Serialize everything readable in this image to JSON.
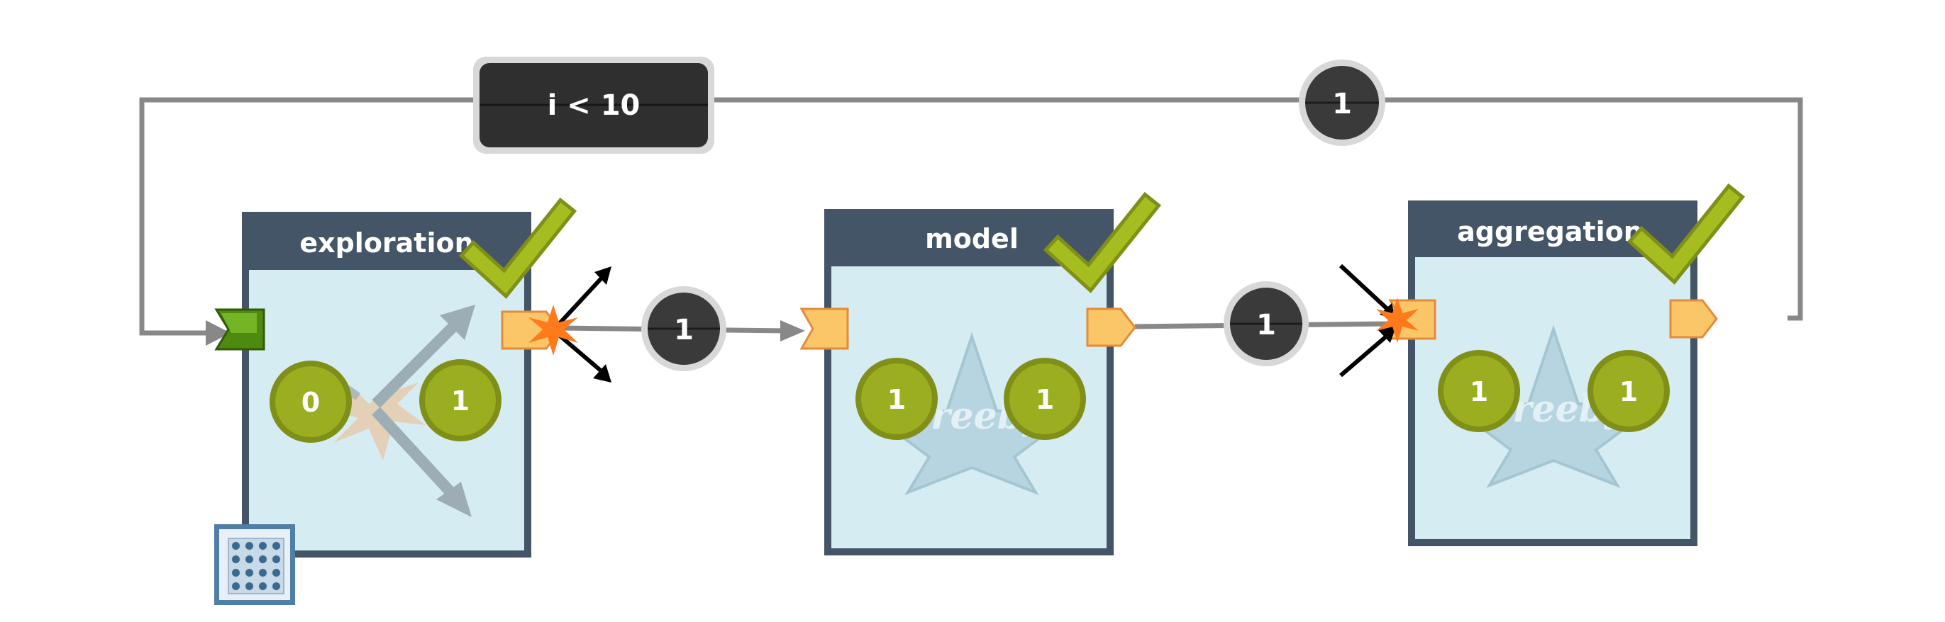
{
  "loop": {
    "condition": "i < 10",
    "counter": "1"
  },
  "nodes": [
    {
      "id": "exploration",
      "title": "exploration",
      "counters": [
        "0",
        "1"
      ],
      "status": "done"
    },
    {
      "id": "model",
      "title": "model",
      "counters": [
        "1",
        "1"
      ],
      "status": "done"
    },
    {
      "id": "aggregation",
      "title": "aggregation",
      "counters": [
        "1",
        "1"
      ],
      "status": "done"
    }
  ],
  "edges": [
    {
      "from": "exploration",
      "to": "model",
      "count": "1"
    },
    {
      "from": "model",
      "to": "aggregation",
      "count": "1"
    }
  ],
  "colors": {
    "node_header": "#435566",
    "node_body": "#d6ecf3",
    "counter_fill": "#9aae1f",
    "check": "#a5bd1f",
    "badge": "#3a3a3a",
    "port": "#fbc667",
    "edge": "#888888"
  },
  "icons": {
    "status": "check-icon",
    "exploration_bg": "explode-arrows-icon",
    "model_bg": "star-logo-icon",
    "tool": "grid-tool-icon"
  }
}
